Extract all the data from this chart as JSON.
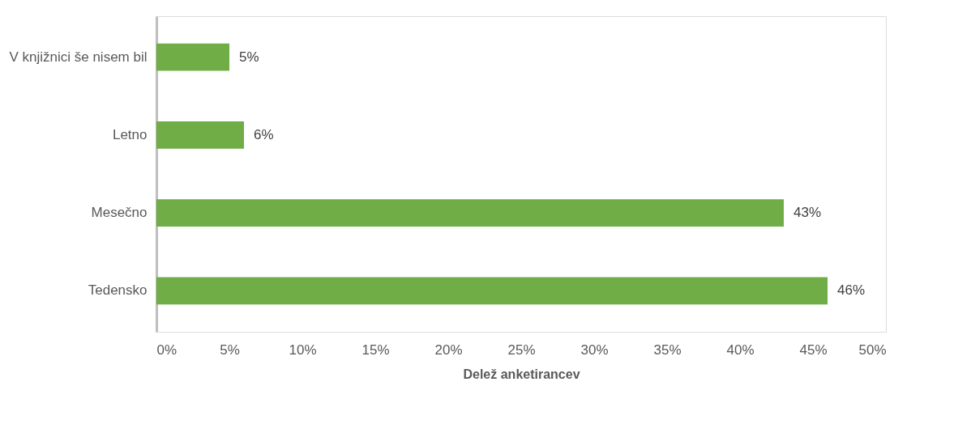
{
  "chart_data": {
    "type": "bar",
    "orientation": "horizontal",
    "xlabel": "Delež anketirancev",
    "categories": [
      "V knjižnici še nisem bil",
      "Letno",
      "Mesečno",
      "Tedensko"
    ],
    "values": [
      5,
      6,
      43,
      46
    ],
    "value_labels": [
      "5%",
      "6%",
      "43%",
      "46%"
    ],
    "color": "#70ad47",
    "xlim": [
      0,
      50
    ],
    "xticks": [
      {
        "value": 0,
        "label": "0%"
      },
      {
        "value": 5,
        "label": "5%"
      },
      {
        "value": 10,
        "label": "10%"
      },
      {
        "value": 15,
        "label": "15%"
      },
      {
        "value": 20,
        "label": "20%"
      },
      {
        "value": 25,
        "label": "25%"
      },
      {
        "value": 30,
        "label": "30%"
      },
      {
        "value": 35,
        "label": "35%"
      },
      {
        "value": 40,
        "label": "40%"
      },
      {
        "value": 45,
        "label": "45%"
      },
      {
        "value": 50,
        "label": "50%"
      }
    ],
    "grid": false
  }
}
